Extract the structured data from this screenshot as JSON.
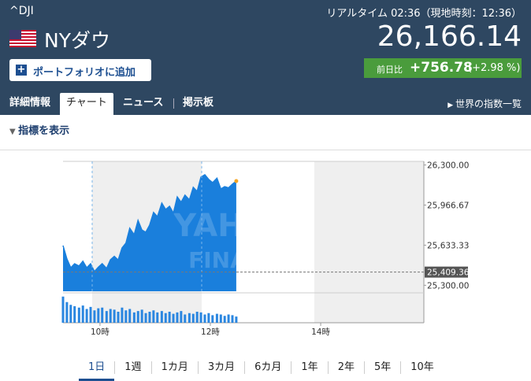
{
  "header": {
    "symbol": "^DJI",
    "realtime": "リアルタイム 02:36（現地時刻：12:36）",
    "name": "NYダウ",
    "price": "26,166.14",
    "add_button": "ポートフォリオに追加",
    "change_label": "前日比",
    "change": "+756.78",
    "change_pct": "(+2.98 %)"
  },
  "tabs": [
    "詳細情報",
    "チャート",
    "ニュース",
    "掲示板"
  ],
  "selected_tab": 1,
  "world_link": "世界の指数一覧",
  "indicator_toggle": "指標を表示",
  "chart_data": {
    "type": "area",
    "color": "#1a7fdc",
    "last_point_color": "#f5a623",
    "volume_color": "#2a86e0",
    "x": [
      9.33,
      9.4,
      9.47,
      9.54,
      9.62,
      9.69,
      9.76,
      9.83,
      9.9,
      9.97,
      10.04,
      10.12,
      10.19,
      10.26,
      10.33,
      10.4,
      10.47,
      10.54,
      10.62,
      10.69,
      10.76,
      10.83,
      10.9,
      10.97,
      11.04,
      11.12,
      11.19,
      11.26,
      11.33,
      11.4,
      11.47,
      11.54,
      11.62,
      11.69,
      11.76,
      11.83,
      11.9,
      11.97,
      12.04,
      12.12,
      12.19,
      12.26,
      12.33,
      12.4,
      12.47
    ],
    "values": [
      25630,
      25520,
      25446,
      25479,
      25460,
      25500,
      25446,
      25479,
      25414,
      25450,
      25480,
      25440,
      25512,
      25540,
      25510,
      25610,
      25650,
      25774,
      25720,
      25839,
      25760,
      25741,
      25800,
      25905,
      25870,
      25983,
      25930,
      25957,
      25900,
      26035,
      25990,
      26049,
      26010,
      26114,
      26080,
      26200,
      26219,
      26180,
      26153,
      26190,
      26101,
      26120,
      26110,
      26140,
      26166.14
    ],
    "volume": [
      38,
      30,
      26,
      24,
      22,
      25,
      20,
      23,
      18,
      21,
      22,
      17,
      20,
      19,
      16,
      22,
      18,
      20,
      15,
      17,
      19,
      14,
      16,
      18,
      15,
      17,
      14,
      16,
      13,
      15,
      17,
      12,
      14,
      13,
      16,
      15,
      12,
      14,
      11,
      13,
      12,
      10,
      12,
      11,
      9
    ],
    "volume_ylim": [
      0,
      40
    ],
    "xlim": [
      9.33,
      15.87
    ],
    "xticks": [
      {
        "value": 10,
        "label": "10時"
      },
      {
        "value": 12,
        "label": "12時"
      },
      {
        "value": 14,
        "label": "14時"
      }
    ],
    "ylim": [
      25250,
      26330
    ],
    "yticks": [
      {
        "value": 26300,
        "label": "26,300.00"
      },
      {
        "value": 25966.67,
        "label": "25,966.67"
      },
      {
        "value": 25633.33,
        "label": "25,633.33"
      },
      {
        "value": 25300,
        "label": "25,300.00"
      }
    ],
    "reference_line": {
      "value": 25409.36,
      "label": "25,409.36"
    },
    "watermark": [
      "YAHOO!",
      "FINANCE"
    ]
  },
  "periods": [
    "1日",
    "1週",
    "1カ月",
    "3カ月",
    "6カ月",
    "1年",
    "2年",
    "5年",
    "10年"
  ],
  "selected_period": 0
}
